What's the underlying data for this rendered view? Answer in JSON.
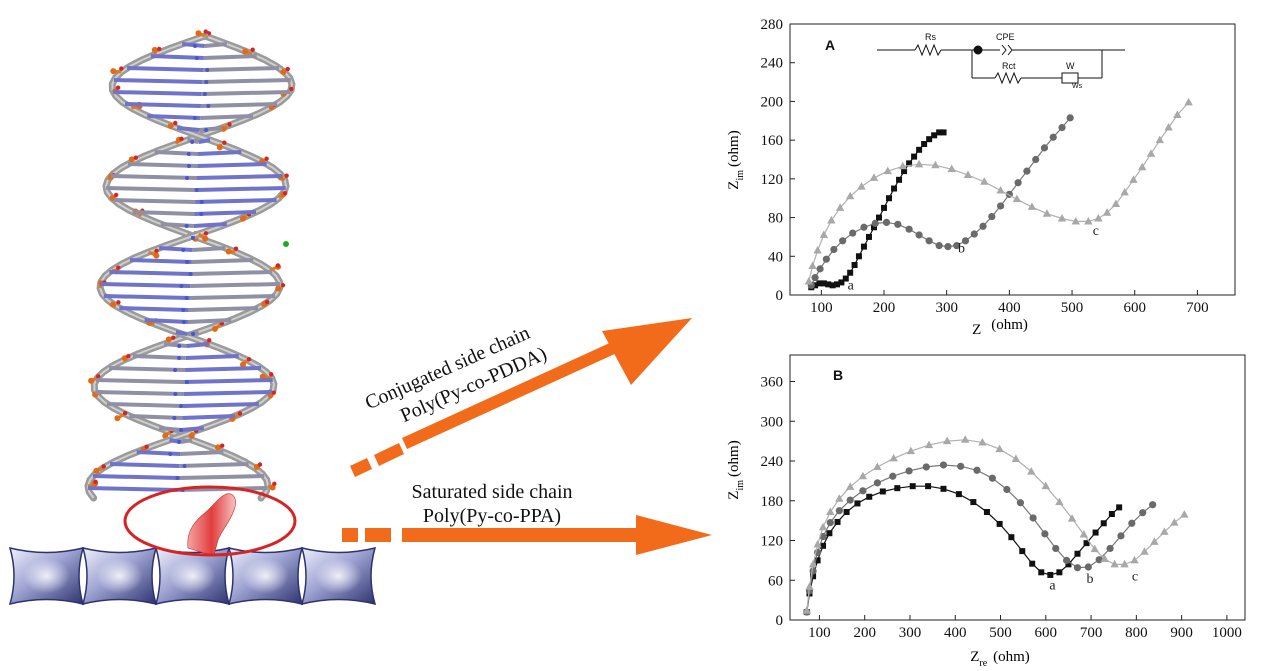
{
  "colors": {
    "arrow": "#f26b1a",
    "substrate": "#4a4f86",
    "ring": "#d62424",
    "series_a": "#111111",
    "series_b": "#6a6a6a",
    "series_c": "#a8a8a8"
  },
  "left_illustration": {
    "structure": "dna-double-helix",
    "substrate_blocks": 5,
    "highlight": "red-ellipse-linker"
  },
  "arrows": {
    "upper_label_line1": "Conjugated side chain",
    "upper_label_line2": "Poly(Py-co-PDDA)",
    "lower_label_line1": "Saturated side chain",
    "lower_label_line2": "Poly(Py-co-PPA)"
  },
  "circuit": {
    "rs": "Rs",
    "cpe": "CPE",
    "rct": "Rct",
    "w": "W",
    "ws": "Ws"
  },
  "chart_data": [
    {
      "type": "scatter",
      "panel": "A",
      "xlabel_main": "Z",
      "xlabel_sub": "",
      "xlabel_unit": "(ohm)",
      "ylabel_main": "Z",
      "ylabel_sub": "im",
      "ylabel_unit": "(ohm)",
      "xlim": [
        50,
        760
      ],
      "ylim": [
        0,
        280
      ],
      "xticks": [
        100,
        200,
        300,
        400,
        500,
        600,
        700
      ],
      "yticks": [
        0,
        40,
        80,
        120,
        160,
        200,
        240,
        280
      ],
      "series": [
        {
          "name": "a",
          "marker": "square",
          "x": [
            84,
            90,
            97,
            104,
            111,
            118,
            125,
            132,
            139,
            146,
            153,
            160,
            168,
            176,
            184,
            192,
            200,
            208,
            216,
            224,
            232,
            240,
            248,
            256,
            264,
            272,
            280,
            288,
            295
          ],
          "y": [
            8,
            10,
            12,
            12,
            11,
            10,
            11,
            13,
            17,
            23,
            31,
            40,
            50,
            60,
            70,
            80,
            90,
            100,
            110,
            119,
            128,
            136,
            143,
            150,
            156,
            161,
            165,
            168,
            168
          ]
        },
        {
          "name": "b",
          "marker": "circle",
          "x": [
            84,
            90,
            98,
            108,
            120,
            134,
            150,
            168,
            186,
            204,
            222,
            240,
            256,
            272,
            288,
            302,
            316,
            330,
            344,
            358,
            372,
            386,
            400,
            414,
            428,
            442,
            456,
            470,
            484,
            497
          ],
          "y": [
            10,
            18,
            27,
            37,
            47,
            56,
            64,
            70,
            74,
            75,
            73,
            68,
            62,
            56,
            51,
            50,
            51,
            56,
            63,
            71,
            81,
            92,
            104,
            116,
            128,
            140,
            152,
            163,
            173,
            183
          ]
        },
        {
          "name": "c",
          "marker": "triangle",
          "x": [
            80,
            86,
            94,
            104,
            116,
            130,
            146,
            164,
            184,
            206,
            230,
            256,
            282,
            308,
            334,
            360,
            386,
            412,
            436,
            460,
            484,
            506,
            526,
            542,
            556,
            570,
            584,
            598,
            612,
            626,
            640,
            654,
            668,
            686
          ],
          "y": [
            14,
            30,
            46,
            62,
            77,
            90,
            102,
            112,
            121,
            128,
            133,
            135,
            134,
            130,
            124,
            117,
            108,
            99,
            91,
            84,
            79,
            76,
            76,
            79,
            85,
            94,
            106,
            119,
            132,
            146,
            160,
            173,
            186,
            199
          ]
        }
      ],
      "curve_labels": [
        {
          "text": "a",
          "x": 142,
          "y": 10
        },
        {
          "text": "b",
          "x": 318,
          "y": 48
        },
        {
          "text": "c",
          "x": 533,
          "y": 66
        }
      ]
    },
    {
      "type": "scatter",
      "panel": "B",
      "xlabel_main": "Z",
      "xlabel_sub": "re",
      "xlabel_unit": "(ohm)",
      "ylabel_main": "Z",
      "ylabel_sub": "im",
      "ylabel_unit": "(ohm)",
      "xlim": [
        35,
        1040
      ],
      "ylim": [
        0,
        400
      ],
      "xticks": [
        100,
        200,
        300,
        400,
        500,
        600,
        700,
        800,
        900,
        1000
      ],
      "yticks": [
        0,
        60,
        120,
        180,
        240,
        300,
        360
      ],
      "series": [
        {
          "name": "a",
          "marker": "square",
          "x": [
            72,
            78,
            86,
            96,
            108,
            122,
            140,
            160,
            184,
            210,
            240,
            272,
            306,
            340,
            374,
            408,
            440,
            470,
            498,
            524,
            548,
            570,
            590,
            610,
            630,
            650,
            670,
            690,
            710,
            728,
            746,
            762
          ],
          "y": [
            12,
            40,
            66,
            90,
            112,
            131,
            148,
            163,
            176,
            186,
            194,
            199,
            202,
            202,
            198,
            190,
            178,
            163,
            145,
            125,
            104,
            85,
            72,
            68,
            72,
            84,
            100,
            116,
            132,
            146,
            160,
            170
          ]
        },
        {
          "name": "b",
          "marker": "circle",
          "x": [
            72,
            78,
            86,
            96,
            108,
            124,
            144,
            168,
            196,
            228,
            262,
            298,
            336,
            374,
            412,
            448,
            482,
            514,
            544,
            572,
            598,
            622,
            646,
            670,
            694,
            718,
            742,
            766,
            790,
            814,
            836
          ],
          "y": [
            12,
            44,
            74,
            102,
            126,
            147,
            165,
            181,
            195,
            207,
            217,
            225,
            231,
            234,
            232,
            226,
            214,
            197,
            177,
            154,
            130,
            108,
            90,
            79,
            80,
            91,
            108,
            127,
            146,
            162,
            174
          ]
        },
        {
          "name": "c",
          "marker": "triangle",
          "x": [
            72,
            78,
            86,
            96,
            108,
            124,
            144,
            168,
            196,
            228,
            264,
            302,
            342,
            382,
            422,
            460,
            498,
            534,
            568,
            600,
            630,
            658,
            684,
            708,
            730,
            752,
            774,
            796,
            818,
            840,
            862,
            884,
            906
          ],
          "y": [
            14,
            50,
            84,
            114,
            140,
            163,
            183,
            201,
            217,
            231,
            244,
            255,
            264,
            270,
            272,
            268,
            258,
            243,
            224,
            202,
            178,
            153,
            129,
            107,
            92,
            84,
            84,
            90,
            103,
            118,
            133,
            147,
            159
          ]
        }
      ],
      "curve_labels": [
        {
          "text": "a",
          "x": 608,
          "y": 52
        },
        {
          "text": "b",
          "x": 690,
          "y": 62
        },
        {
          "text": "c",
          "x": 790,
          "y": 66
        }
      ]
    }
  ]
}
